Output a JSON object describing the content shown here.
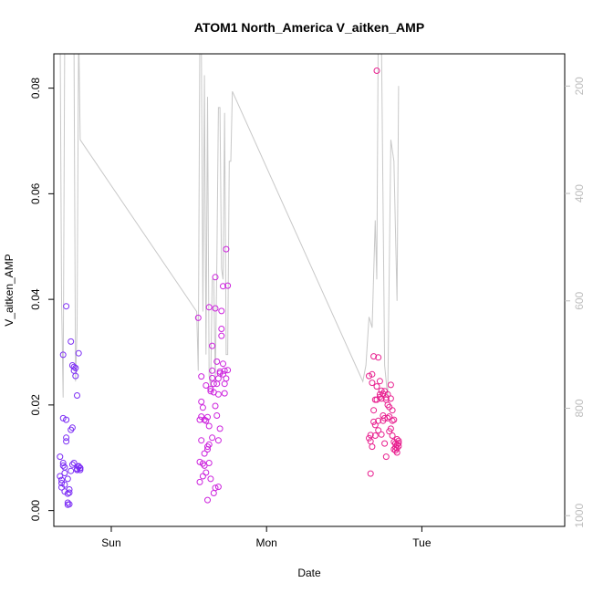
{
  "chart_data": {
    "type": "scatter",
    "title": "ATOM1 North_America V_aitken_AMP",
    "xlabel": "Date",
    "ylabel": "V_aitken_AMP",
    "x_ticks": [
      "Sun",
      "Mon",
      "Tue"
    ],
    "xlim": [
      -0.37,
      2.92
    ],
    "ylim": [
      -0.003,
      0.0865
    ],
    "y_ticks": [
      0.0,
      0.02,
      0.04,
      0.06,
      0.08
    ],
    "y2_ticks": [
      200,
      400,
      600,
      800,
      1000
    ],
    "y2lim": [
      1020,
      140
    ],
    "grid": false,
    "legend": "none",
    "colors": {
      "group1": "#7b2cf5",
      "group2": "#cc22dd",
      "group3": "#e8208f",
      "line": "#c8c8c8"
    },
    "series": [
      {
        "marker": "circle",
        "color_key": "group1",
        "x": [
          -0.33,
          -0.33,
          -0.32,
          -0.32,
          -0.32,
          -0.31,
          -0.31,
          -0.31,
          -0.31,
          -0.3,
          -0.3,
          -0.3,
          -0.3,
          -0.29,
          -0.29,
          -0.29,
          -0.29,
          -0.28,
          -0.28,
          -0.28,
          -0.28,
          -0.27,
          -0.27,
          -0.27,
          -0.26,
          -0.26,
          -0.26,
          -0.25,
          -0.25,
          -0.25,
          -0.24,
          -0.24,
          -0.24,
          -0.23,
          -0.23,
          -0.22,
          -0.22,
          -0.22,
          -0.21,
          -0.21,
          -0.21,
          -0.2,
          -0.2,
          -0.2
        ],
        "y": [
          0.0102,
          0.0065,
          0.0058,
          0.0044,
          0.0052,
          0.0295,
          0.0175,
          0.0085,
          0.009,
          0.0082,
          0.0071,
          0.0049,
          0.0036,
          0.0387,
          0.0172,
          0.0138,
          0.0131,
          0.0032,
          0.0015,
          0.0011,
          0.006,
          0.0034,
          0.0012,
          0.004,
          0.032,
          0.0153,
          0.0075,
          0.0275,
          0.0157,
          0.0087,
          0.009,
          0.0272,
          0.0265,
          0.0255,
          0.027,
          0.0079,
          0.0218,
          0.0077,
          0.0083,
          0.0298,
          0.0084,
          0.0077,
          0.0081,
          0.008
        ]
      },
      {
        "marker": "circle",
        "color_key": "group2",
        "x": [
          0.56,
          0.57,
          0.57,
          0.57,
          0.58,
          0.58,
          0.58,
          0.58,
          0.59,
          0.59,
          0.59,
          0.6,
          0.6,
          0.6,
          0.61,
          0.61,
          0.61,
          0.62,
          0.62,
          0.62,
          0.62,
          0.63,
          0.63,
          0.63,
          0.63,
          0.64,
          0.64,
          0.64,
          0.65,
          0.65,
          0.65,
          0.65,
          0.66,
          0.66,
          0.66,
          0.67,
          0.67,
          0.67,
          0.67,
          0.68,
          0.68,
          0.68,
          0.69,
          0.69,
          0.69,
          0.69,
          0.7,
          0.7,
          0.7,
          0.71,
          0.71,
          0.71,
          0.72,
          0.72,
          0.72,
          0.73,
          0.73,
          0.73,
          0.74,
          0.74,
          0.75,
          0.75
        ],
        "y": [
          0.0365,
          0.0172,
          0.0092,
          0.0054,
          0.0254,
          0.0206,
          0.0178,
          0.0133,
          0.0195,
          0.0089,
          0.0065,
          0.0172,
          0.0108,
          0.0085,
          0.0237,
          0.017,
          0.0072,
          0.002,
          0.0116,
          0.0121,
          0.0177,
          0.0385,
          0.016,
          0.0125,
          0.009,
          0.0226,
          0.006,
          0.023,
          0.0312,
          0.0265,
          0.0251,
          0.0138,
          0.0224,
          0.024,
          0.0033,
          0.0383,
          0.0442,
          0.0198,
          0.0043,
          0.0282,
          0.024,
          0.018,
          0.022,
          0.025,
          0.0133,
          0.0045,
          0.0263,
          0.0155,
          0.026,
          0.0378,
          0.0344,
          0.0331,
          0.0278,
          0.0425,
          0.0258,
          0.0265,
          0.024,
          0.0222,
          0.025,
          0.0495,
          0.0426,
          0.0266
        ]
      },
      {
        "marker": "circle",
        "color_key": "group3",
        "x": [
          1.66,
          1.66,
          1.67,
          1.67,
          1.67,
          1.68,
          1.68,
          1.68,
          1.69,
          1.69,
          1.69,
          1.7,
          1.7,
          1.7,
          1.71,
          1.71,
          1.71,
          1.72,
          1.72,
          1.72,
          1.73,
          1.73,
          1.73,
          1.74,
          1.74,
          1.74,
          1.75,
          1.75,
          1.75,
          1.76,
          1.76,
          1.76,
          1.77,
          1.77,
          1.77,
          1.78,
          1.78,
          1.78,
          1.79,
          1.79,
          1.79,
          1.8,
          1.8,
          1.8,
          1.81,
          1.81,
          1.81,
          1.82,
          1.82,
          1.82,
          1.83,
          1.83,
          1.83,
          1.84,
          1.84,
          1.84,
          1.84,
          1.85,
          1.85,
          1.85
        ],
        "y": [
          0.0255,
          0.0137,
          0.007,
          0.0143,
          0.0131,
          0.0258,
          0.0242,
          0.0121,
          0.0292,
          0.019,
          0.0168,
          0.021,
          0.0162,
          0.0142,
          0.0833,
          0.0235,
          0.021,
          0.029,
          0.017,
          0.0152,
          0.0245,
          0.022,
          0.0215,
          0.0227,
          0.0212,
          0.0144,
          0.0221,
          0.018,
          0.017,
          0.0175,
          0.0127,
          0.0226,
          0.021,
          0.0102,
          0.0214,
          0.022,
          0.0175,
          0.02,
          0.0196,
          0.0178,
          0.015,
          0.0238,
          0.0212,
          0.0155,
          0.019,
          0.017,
          0.0142,
          0.0172,
          0.013,
          0.0116,
          0.0127,
          0.0114,
          0.012,
          0.0135,
          0.0125,
          0.0118,
          0.011,
          0.0128,
          0.0132,
          0.0122
        ]
      },
      {
        "type": "line",
        "axis": "right",
        "color_key": "line",
        "x": [
          -0.34,
          -0.33,
          -0.32,
          -0.31,
          -0.3,
          -0.29,
          -0.28,
          -0.27,
          -0.26,
          -0.25,
          -0.24,
          -0.23,
          -0.22,
          -0.21,
          -0.2,
          0.55,
          0.56,
          0.57,
          0.58,
          0.59,
          0.6,
          0.61,
          0.62,
          0.63,
          0.64,
          0.65,
          0.66,
          0.67,
          0.68,
          0.69,
          0.7,
          0.71,
          0.72,
          0.73,
          0.74,
          0.75,
          0.76,
          0.77,
          0.78,
          1.62,
          1.64,
          1.66,
          1.68,
          1.7,
          1.71,
          1.72,
          1.74,
          1.76,
          1.78,
          1.8,
          1.82,
          1.84,
          1.85
        ],
        "y": [
          60,
          60,
          600,
          780,
          120,
          120,
          120,
          80,
          80,
          80,
          120,
          750,
          650,
          90,
          300,
          620,
          730,
          120,
          120,
          620,
          180,
          700,
          220,
          740,
          760,
          560,
          560,
          750,
          530,
          240,
          240,
          540,
          560,
          250,
          700,
          700,
          340,
          340,
          210,
          750,
          720,
          630,
          650,
          450,
          560,
          60,
          110,
          720,
          780,
          300,
          340,
          600,
          200
        ]
      }
    ]
  }
}
